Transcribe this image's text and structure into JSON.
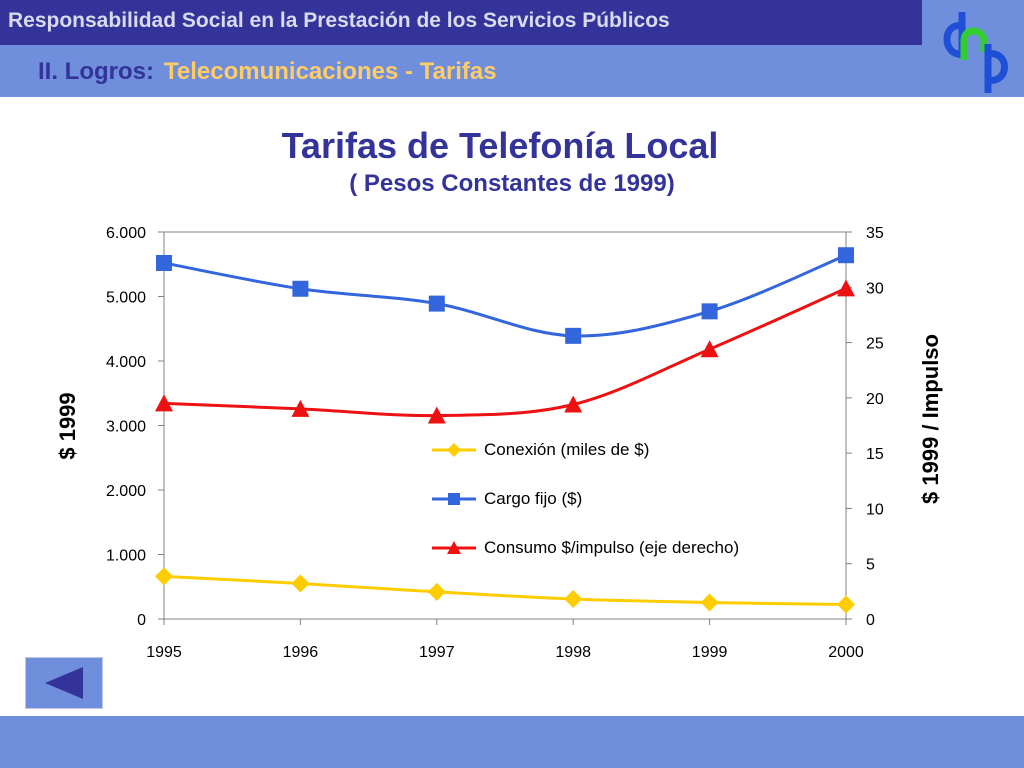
{
  "header": {
    "title": "Responsabilidad Social en la Prestación de los Servicios Públicos",
    "section_prefix": "II. Logros:",
    "section_topic": "Telecomunicaciones - Tarifas",
    "logo_text": "dnp"
  },
  "colors": {
    "header_dark": "#333399",
    "header_light": "#6f8fdc",
    "topic_text": "#ffcc66",
    "series_conexion": "#ffcc00",
    "series_cargo": "#3366dd",
    "series_consumo": "#ee1111"
  },
  "navigation": {
    "back_icon": "triangle-left-icon"
  },
  "chart_data": {
    "type": "line",
    "title": "Tarifas de Telefonía Local",
    "subtitle": "( Pesos Constantes de 1999)",
    "x": [
      "1995",
      "1996",
      "1997",
      "1998",
      "1999",
      "2000"
    ],
    "ylabel_left": "$ 1999",
    "ylabel_right": "$ 1999 / Impulso",
    "ylim_left": [
      0,
      6000
    ],
    "ylim_right": [
      0,
      35
    ],
    "yticks_left": [
      "0",
      "1.000",
      "2.000",
      "3.000",
      "4.000",
      "5.000",
      "6.000"
    ],
    "yticks_right": [
      "0",
      "5",
      "10",
      "15",
      "20",
      "25",
      "30",
      "35"
    ],
    "legend_placement": "center-right",
    "grid": false,
    "series": [
      {
        "name": "Conexión (miles de $)",
        "axis": "left",
        "marker": "diamond",
        "values": [
          660,
          550,
          420,
          310,
          255,
          225
        ]
      },
      {
        "name": "Cargo fijo ($)",
        "axis": "left",
        "marker": "square",
        "values": [
          5520,
          5120,
          4890,
          4390,
          4770,
          5640
        ]
      },
      {
        "name": "Consumo $/impulso (eje derecho)",
        "axis": "right",
        "marker": "triangle",
        "values": [
          19.5,
          19.0,
          18.4,
          19.4,
          24.4,
          29.9
        ]
      }
    ]
  }
}
